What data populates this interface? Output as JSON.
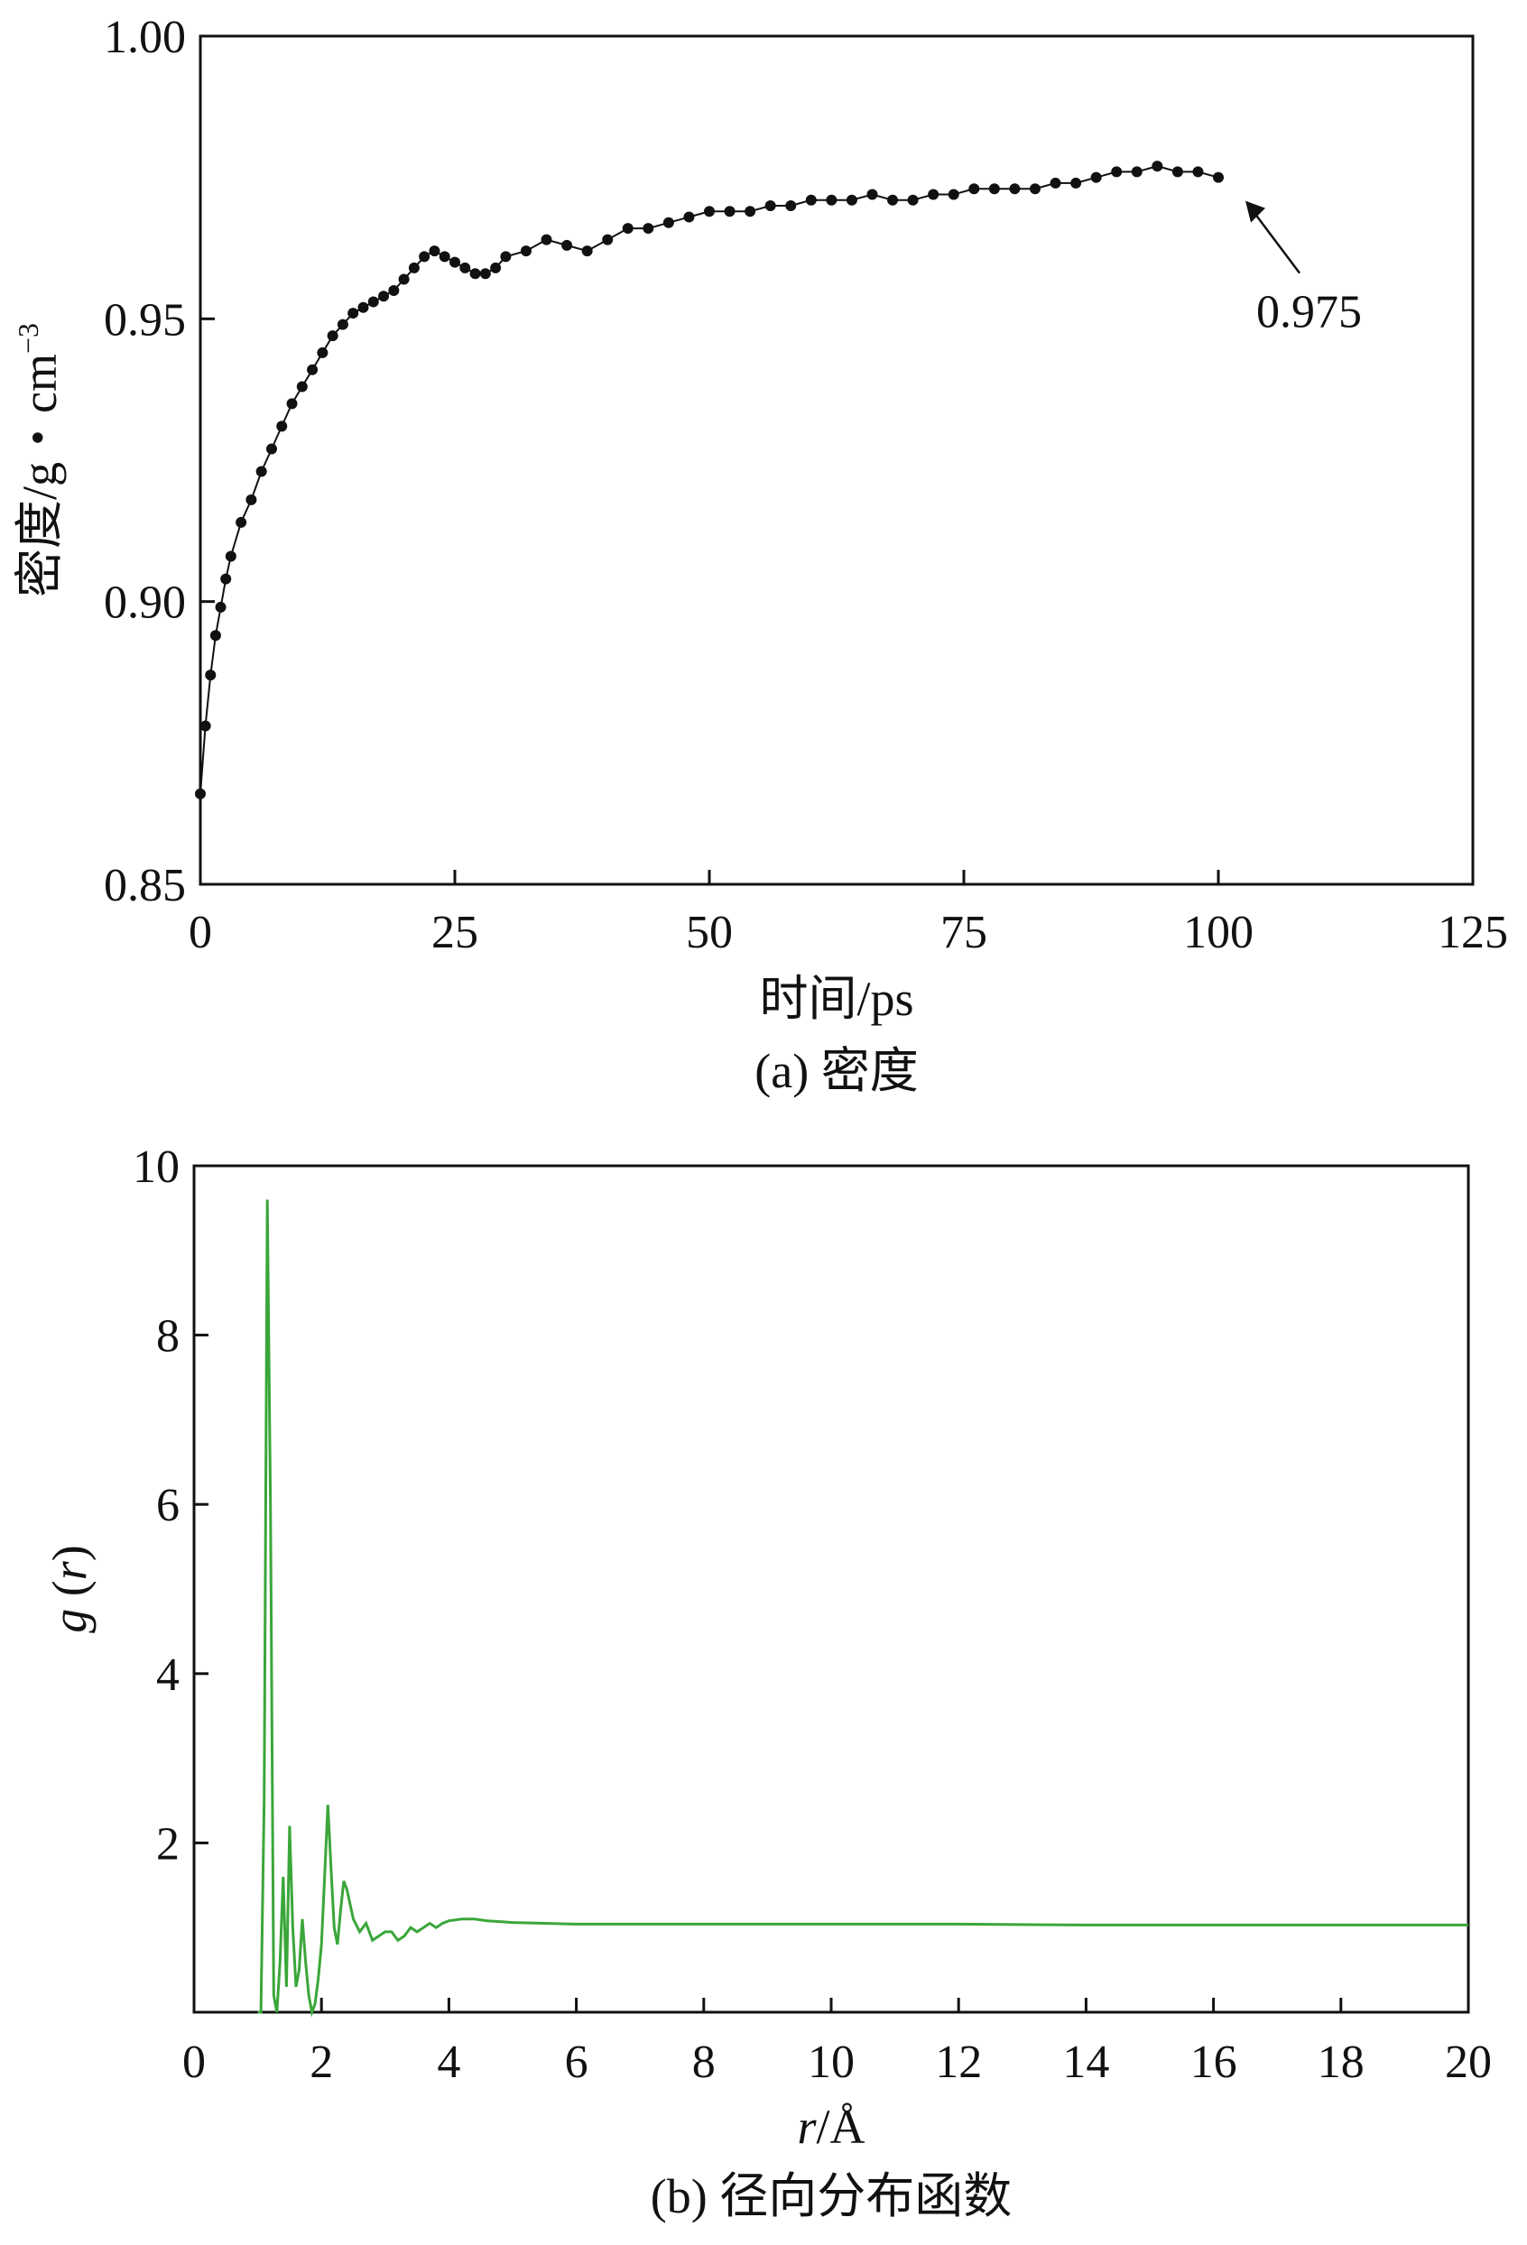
{
  "chart_data": [
    {
      "type": "scatter",
      "caption": "(a) 密度",
      "xlabel": "时间/ps",
      "ylabel_main": "密度/g・cm",
      "ylabel_sup": "−3",
      "xlim": [
        0,
        125
      ],
      "ylim": [
        0.85,
        1.0
      ],
      "xticks": [
        "0",
        "25",
        "50",
        "75",
        "100",
        "125"
      ],
      "yticks": [
        "0.85",
        "0.90",
        "0.95",
        "1.00"
      ],
      "annotation": {
        "text": "0.975",
        "x": 100,
        "y": 0.975
      },
      "marker_color": "#111111",
      "series": [
        {
          "x": [
            0,
            0.5,
            1,
            1.5,
            2,
            2.5,
            3,
            4,
            5,
            6,
            7,
            8,
            9,
            10,
            11,
            12,
            13,
            14,
            15,
            16,
            17,
            18,
            19,
            20,
            21,
            22,
            23,
            24,
            25,
            26,
            27,
            28,
            29,
            30,
            32,
            34,
            36,
            38,
            40,
            42,
            44,
            46,
            48,
            50,
            52,
            54,
            56,
            58,
            60,
            62,
            64,
            66,
            68,
            70,
            72,
            74,
            76,
            78,
            80,
            82,
            84,
            86,
            88,
            90,
            92,
            94,
            96,
            98,
            100
          ],
          "y": [
            0.866,
            0.878,
            0.887,
            0.894,
            0.899,
            0.904,
            0.908,
            0.914,
            0.918,
            0.923,
            0.927,
            0.931,
            0.935,
            0.938,
            0.941,
            0.944,
            0.947,
            0.949,
            0.951,
            0.952,
            0.953,
            0.954,
            0.955,
            0.957,
            0.959,
            0.961,
            0.962,
            0.961,
            0.96,
            0.959,
            0.958,
            0.958,
            0.959,
            0.961,
            0.962,
            0.964,
            0.963,
            0.962,
            0.964,
            0.966,
            0.966,
            0.967,
            0.968,
            0.969,
            0.969,
            0.969,
            0.97,
            0.97,
            0.971,
            0.971,
            0.971,
            0.972,
            0.971,
            0.971,
            0.972,
            0.972,
            0.973,
            0.973,
            0.973,
            0.973,
            0.974,
            0.974,
            0.975,
            0.976,
            0.976,
            0.977,
            0.976,
            0.976,
            0.975
          ]
        }
      ]
    },
    {
      "type": "line",
      "caption": "(b) 径向分布函数",
      "xlabel_var": "r",
      "xlabel_unit": "/Å",
      "ylabel_g": "g",
      "ylabel_r": "r",
      "xlim": [
        0,
        20
      ],
      "ylim": [
        0,
        10
      ],
      "xticks": [
        "0",
        "2",
        "4",
        "6",
        "8",
        "10",
        "12",
        "14",
        "16",
        "18",
        "20"
      ],
      "yticks": [
        "2",
        "4",
        "6",
        "8",
        "10"
      ],
      "line_color": "#3aa63a",
      "series": [
        {
          "x": [
            1.0,
            1.05,
            1.1,
            1.15,
            1.2,
            1.25,
            1.3,
            1.35,
            1.4,
            1.45,
            1.5,
            1.55,
            1.6,
            1.65,
            1.7,
            1.75,
            1.8,
            1.85,
            1.9,
            1.95,
            2.0,
            2.05,
            2.1,
            2.15,
            2.2,
            2.25,
            2.3,
            2.35,
            2.4,
            2.5,
            2.6,
            2.7,
            2.8,
            2.9,
            3.0,
            3.1,
            3.2,
            3.3,
            3.4,
            3.5,
            3.6,
            3.7,
            3.8,
            3.9,
            4.0,
            4.2,
            4.4,
            4.6,
            4.8,
            5.0,
            5.5,
            6.0,
            6.5,
            7.0,
            8.0,
            10.0,
            12.0,
            14.0,
            16.0,
            18.0,
            20.0
          ],
          "y": [
            0.0,
            0.0,
            2.5,
            9.6,
            6.0,
            0.2,
            0.0,
            0.6,
            1.6,
            0.3,
            2.2,
            1.0,
            0.3,
            0.5,
            1.1,
            0.6,
            0.2,
            0.0,
            0.1,
            0.4,
            0.8,
            1.6,
            2.45,
            1.7,
            1.0,
            0.8,
            1.2,
            1.55,
            1.45,
            1.1,
            0.95,
            1.05,
            0.85,
            0.9,
            0.95,
            0.95,
            0.85,
            0.9,
            1.0,
            0.95,
            1.0,
            1.05,
            1.0,
            1.05,
            1.08,
            1.1,
            1.1,
            1.08,
            1.07,
            1.06,
            1.05,
            1.04,
            1.04,
            1.04,
            1.04,
            1.04,
            1.04,
            1.03,
            1.03,
            1.03,
            1.03
          ]
        }
      ]
    }
  ]
}
